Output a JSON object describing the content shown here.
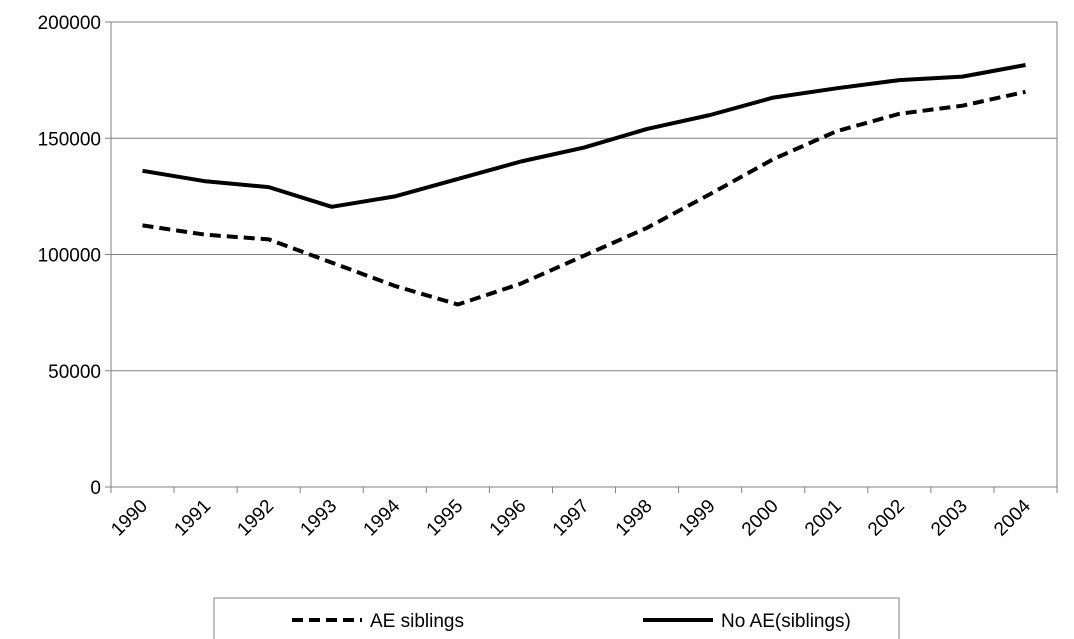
{
  "chart_data": {
    "type": "line",
    "categories": [
      "1990",
      "1991",
      "1992",
      "1993",
      "1994",
      "1995",
      "1996",
      "1997",
      "1998",
      "1999",
      "2000",
      "2001",
      "2002",
      "2003",
      "2004"
    ],
    "series": [
      {
        "name": "AE siblings",
        "style": "dashed",
        "color": "#000000",
        "values": [
          112500,
          108500,
          106500,
          96500,
          86500,
          78500,
          87500,
          99500,
          111500,
          126000,
          141000,
          153000,
          160500,
          164000,
          170000
        ]
      },
      {
        "name": "No AE(siblings)",
        "style": "solid",
        "color": "#000000",
        "values": [
          136000,
          131500,
          129000,
          120500,
          125000,
          132500,
          140000,
          146000,
          154000,
          160000,
          167500,
          171500,
          175000,
          176500,
          181500
        ]
      }
    ],
    "ylim": [
      0,
      200000
    ],
    "yticks": [
      "0",
      "50000",
      "100000",
      "150000",
      "200000"
    ],
    "grid": true,
    "legend_position": "bottom",
    "title": "",
    "xlabel": "",
    "ylabel": ""
  }
}
